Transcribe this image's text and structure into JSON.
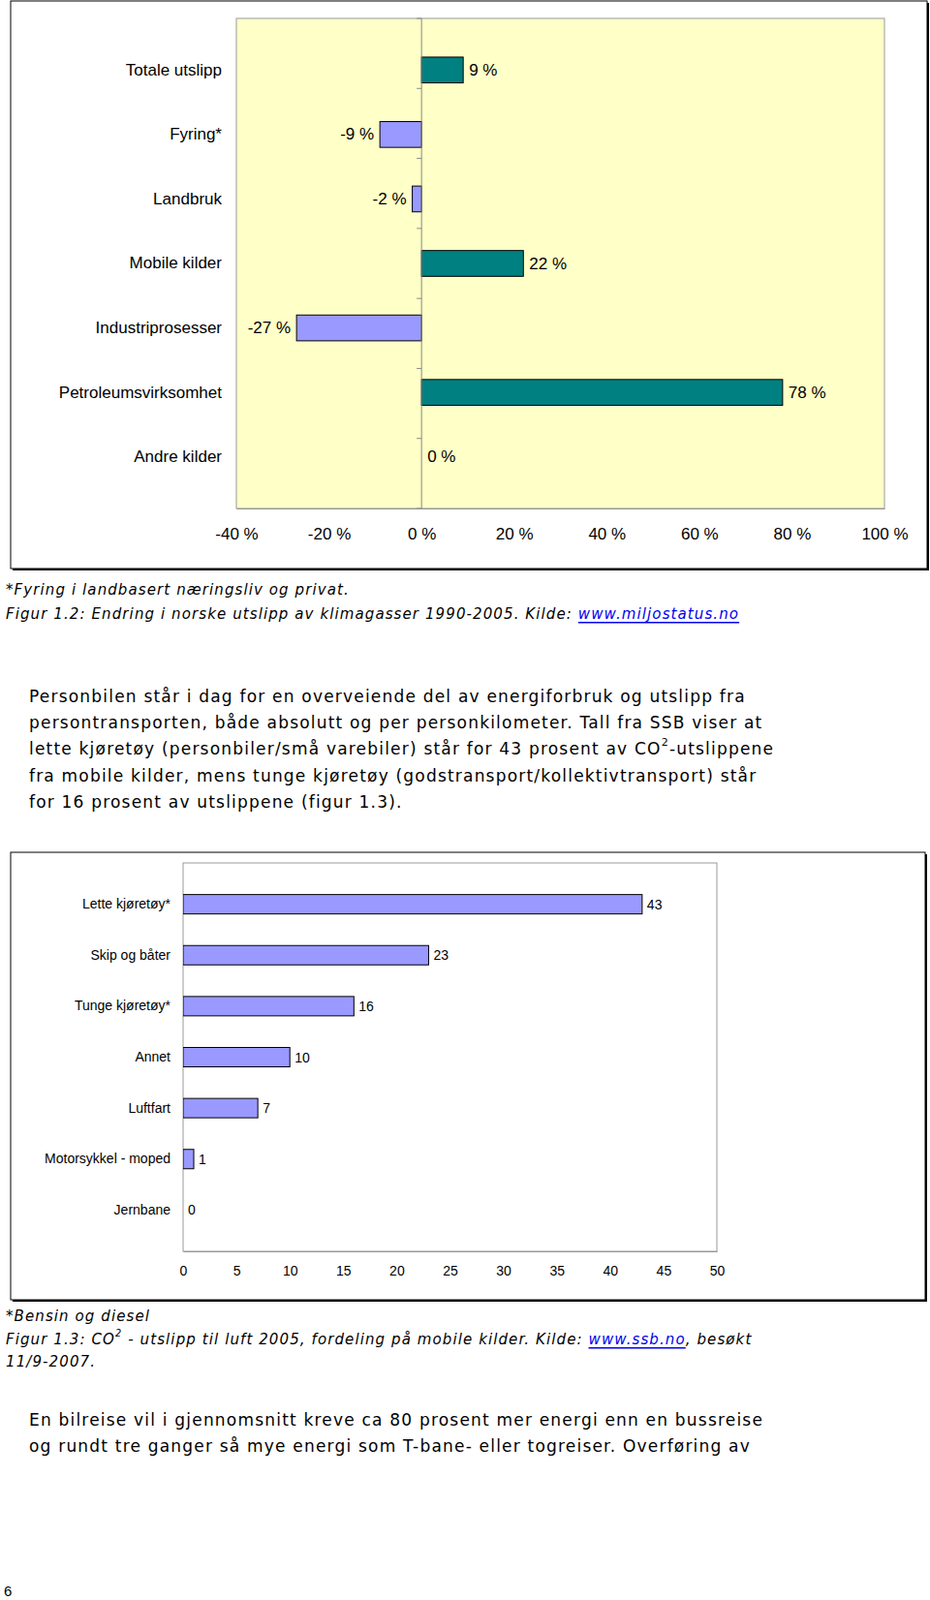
{
  "chart_data": [
    {
      "type": "bar",
      "orientation": "horizontal",
      "categories": [
        "Totale utslipp",
        "Fyring*",
        "Landbruk",
        "Mobile kilder",
        "Industriprosesser",
        "Petroleumsvirksomhet",
        "Andre kilder"
      ],
      "values": [
        9,
        -9,
        -2,
        22,
        -27,
        78,
        0
      ],
      "value_labels": [
        "9 %",
        "-9 %",
        "-2 %",
        "22 %",
        "-27 %",
        "78 %",
        "0 %"
      ],
      "colors": [
        "#008080",
        "#9999ff",
        "#9999ff",
        "#008080",
        "#9999ff",
        "#008080",
        "#008080"
      ],
      "xlim": [
        -40,
        100
      ],
      "xticks": [
        {
          "value": -40,
          "label": "-40 %"
        },
        {
          "value": -20,
          "label": "-20 %"
        },
        {
          "value": 0,
          "label": "0 %"
        },
        {
          "value": 20,
          "label": "20 %"
        },
        {
          "value": 40,
          "label": "40 %"
        },
        {
          "value": 60,
          "label": "60 %"
        },
        {
          "value": 80,
          "label": "80 %"
        },
        {
          "value": 100,
          "label": "100 %"
        }
      ],
      "data_labels": true,
      "grid": false
    },
    {
      "type": "bar",
      "orientation": "horizontal",
      "categories": [
        "Lette kjøretøy*",
        "Skip og båter",
        "Tunge kjøretøy*",
        "Annet",
        "Luftfart",
        "Motorsykkel - moped",
        "Jernbane"
      ],
      "values": [
        43,
        23,
        16,
        10,
        7,
        1,
        0
      ],
      "color": "#9999ff",
      "xlim": [
        0,
        50
      ],
      "xticks": [
        0,
        5,
        10,
        15,
        20,
        25,
        30,
        35,
        40,
        45,
        50
      ],
      "data_labels": true,
      "grid": false
    }
  ],
  "document": {
    "figure_1_2_note": [
      "*Fyring i landbasert næringsliv og privat."
    ],
    "figure_1_2_caption": [
      [
        "Figur 1.2: Endring i norske utslipp av klimagasser 1990-2005. Kilde: ",
        {
          "text": "www.miljostatus.no",
          "link": true
        }
      ]
    ],
    "paragraph_1": [
      "Personbilen står i dag for en overveiende del av energiforbruk og utslipp fra",
      "persontransporten, både absolutt og per personkilometer. Tall fra SSB viser at",
      [
        "lette kjøretøy (personbiler/små varebiler) står for 43 prosent av CO",
        {
          "text": "2",
          "sup": true
        },
        "-utslippene"
      ],
      "fra mobile kilder, mens tunge kjøretøy (godstransport/kollektivtransport) står",
      "for 16 prosent av utslippene (figur 1.3)."
    ],
    "figure_1_3_note": [
      "*Bensin og diesel"
    ],
    "figure_1_3_caption": [
      [
        "Figur 1.3: CO",
        {
          "text": "2",
          "sup": true
        },
        " - utslipp til luft 2005, fordeling på mobile kilder. Kilde: ",
        {
          "text": "www.ssb.no",
          "link": true
        },
        ", besøkt"
      ],
      [
        "11/9-2007."
      ]
    ],
    "paragraph_2": [
      "En bilreise vil i gjennomsnitt kreve ca 80 prosent mer energi enn en bussreise",
      "og rundt tre ganger så mye energi som T-bane- eller togreiser. Overføring av"
    ],
    "page_number": 6
  }
}
